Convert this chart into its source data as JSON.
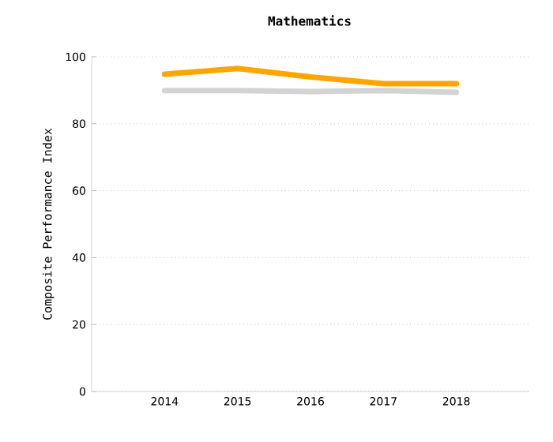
{
  "chart_data": {
    "type": "line",
    "title": "Mathematics",
    "ylabel": "Composite Performance Index",
    "categories": [
      "2014",
      "2015",
      "2016",
      "2017",
      "2018"
    ],
    "series": [
      {
        "color": "#ffa500",
        "values": [
          94.8,
          96.5,
          94,
          92,
          92
        ]
      },
      {
        "color": "#d3d3d3",
        "values": [
          89.9,
          89.9,
          89.6,
          89.9,
          89.4
        ]
      }
    ],
    "ylim": [
      0,
      100
    ],
    "yticks": [
      0,
      20,
      40,
      60,
      80,
      100
    ],
    "grid": "y",
    "marker": "none",
    "line_style": "solid"
  }
}
